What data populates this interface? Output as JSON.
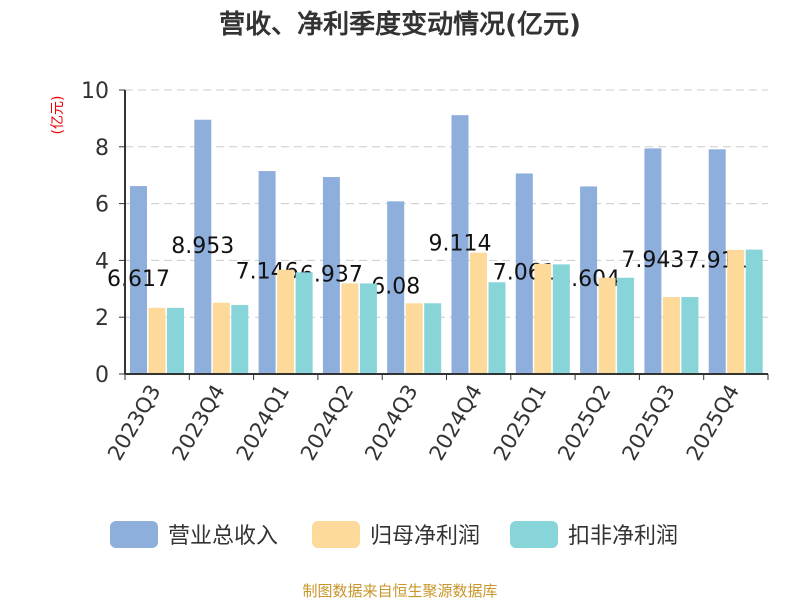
{
  "chart_data": {
    "type": "bar",
    "title": "营收、净利季度变动情况(亿元)",
    "ylabel": "(亿元)",
    "ylim": [
      0,
      10
    ],
    "yticks": [
      0,
      2,
      4,
      6,
      8,
      10
    ],
    "grid": true,
    "legend_position": "bottom",
    "categories": [
      "2023Q3",
      "2023Q4",
      "2024Q1",
      "2024Q2",
      "2024Q3",
      "2024Q4",
      "2025Q1",
      "2025Q2",
      "2025Q3",
      "2025Q4"
    ],
    "series": [
      {
        "name": "营业总收入",
        "color": "#8eaedb",
        "values": [
          6.617,
          8.953,
          7.146,
          6.937,
          6.08,
          9.114,
          7.061,
          6.604,
          7.943,
          7.911
        ],
        "labels": [
          "6.617",
          "8.953",
          "7.146",
          "6.937",
          "6.08",
          "9.114",
          "7.061",
          "6.604",
          "7.943",
          "7.911"
        ]
      },
      {
        "name": "归母净利润",
        "color": "#fdd99a",
        "values": [
          2.33,
          2.51,
          3.67,
          3.19,
          2.49,
          4.27,
          3.88,
          3.39,
          2.71,
          4.37
        ]
      },
      {
        "name": "扣非净利润",
        "color": "#87d5d9",
        "values": [
          2.33,
          2.43,
          3.58,
          3.19,
          2.49,
          3.23,
          3.86,
          3.39,
          2.71,
          4.38
        ]
      }
    ]
  },
  "footer": "制图数据来自恒生聚源数据库"
}
